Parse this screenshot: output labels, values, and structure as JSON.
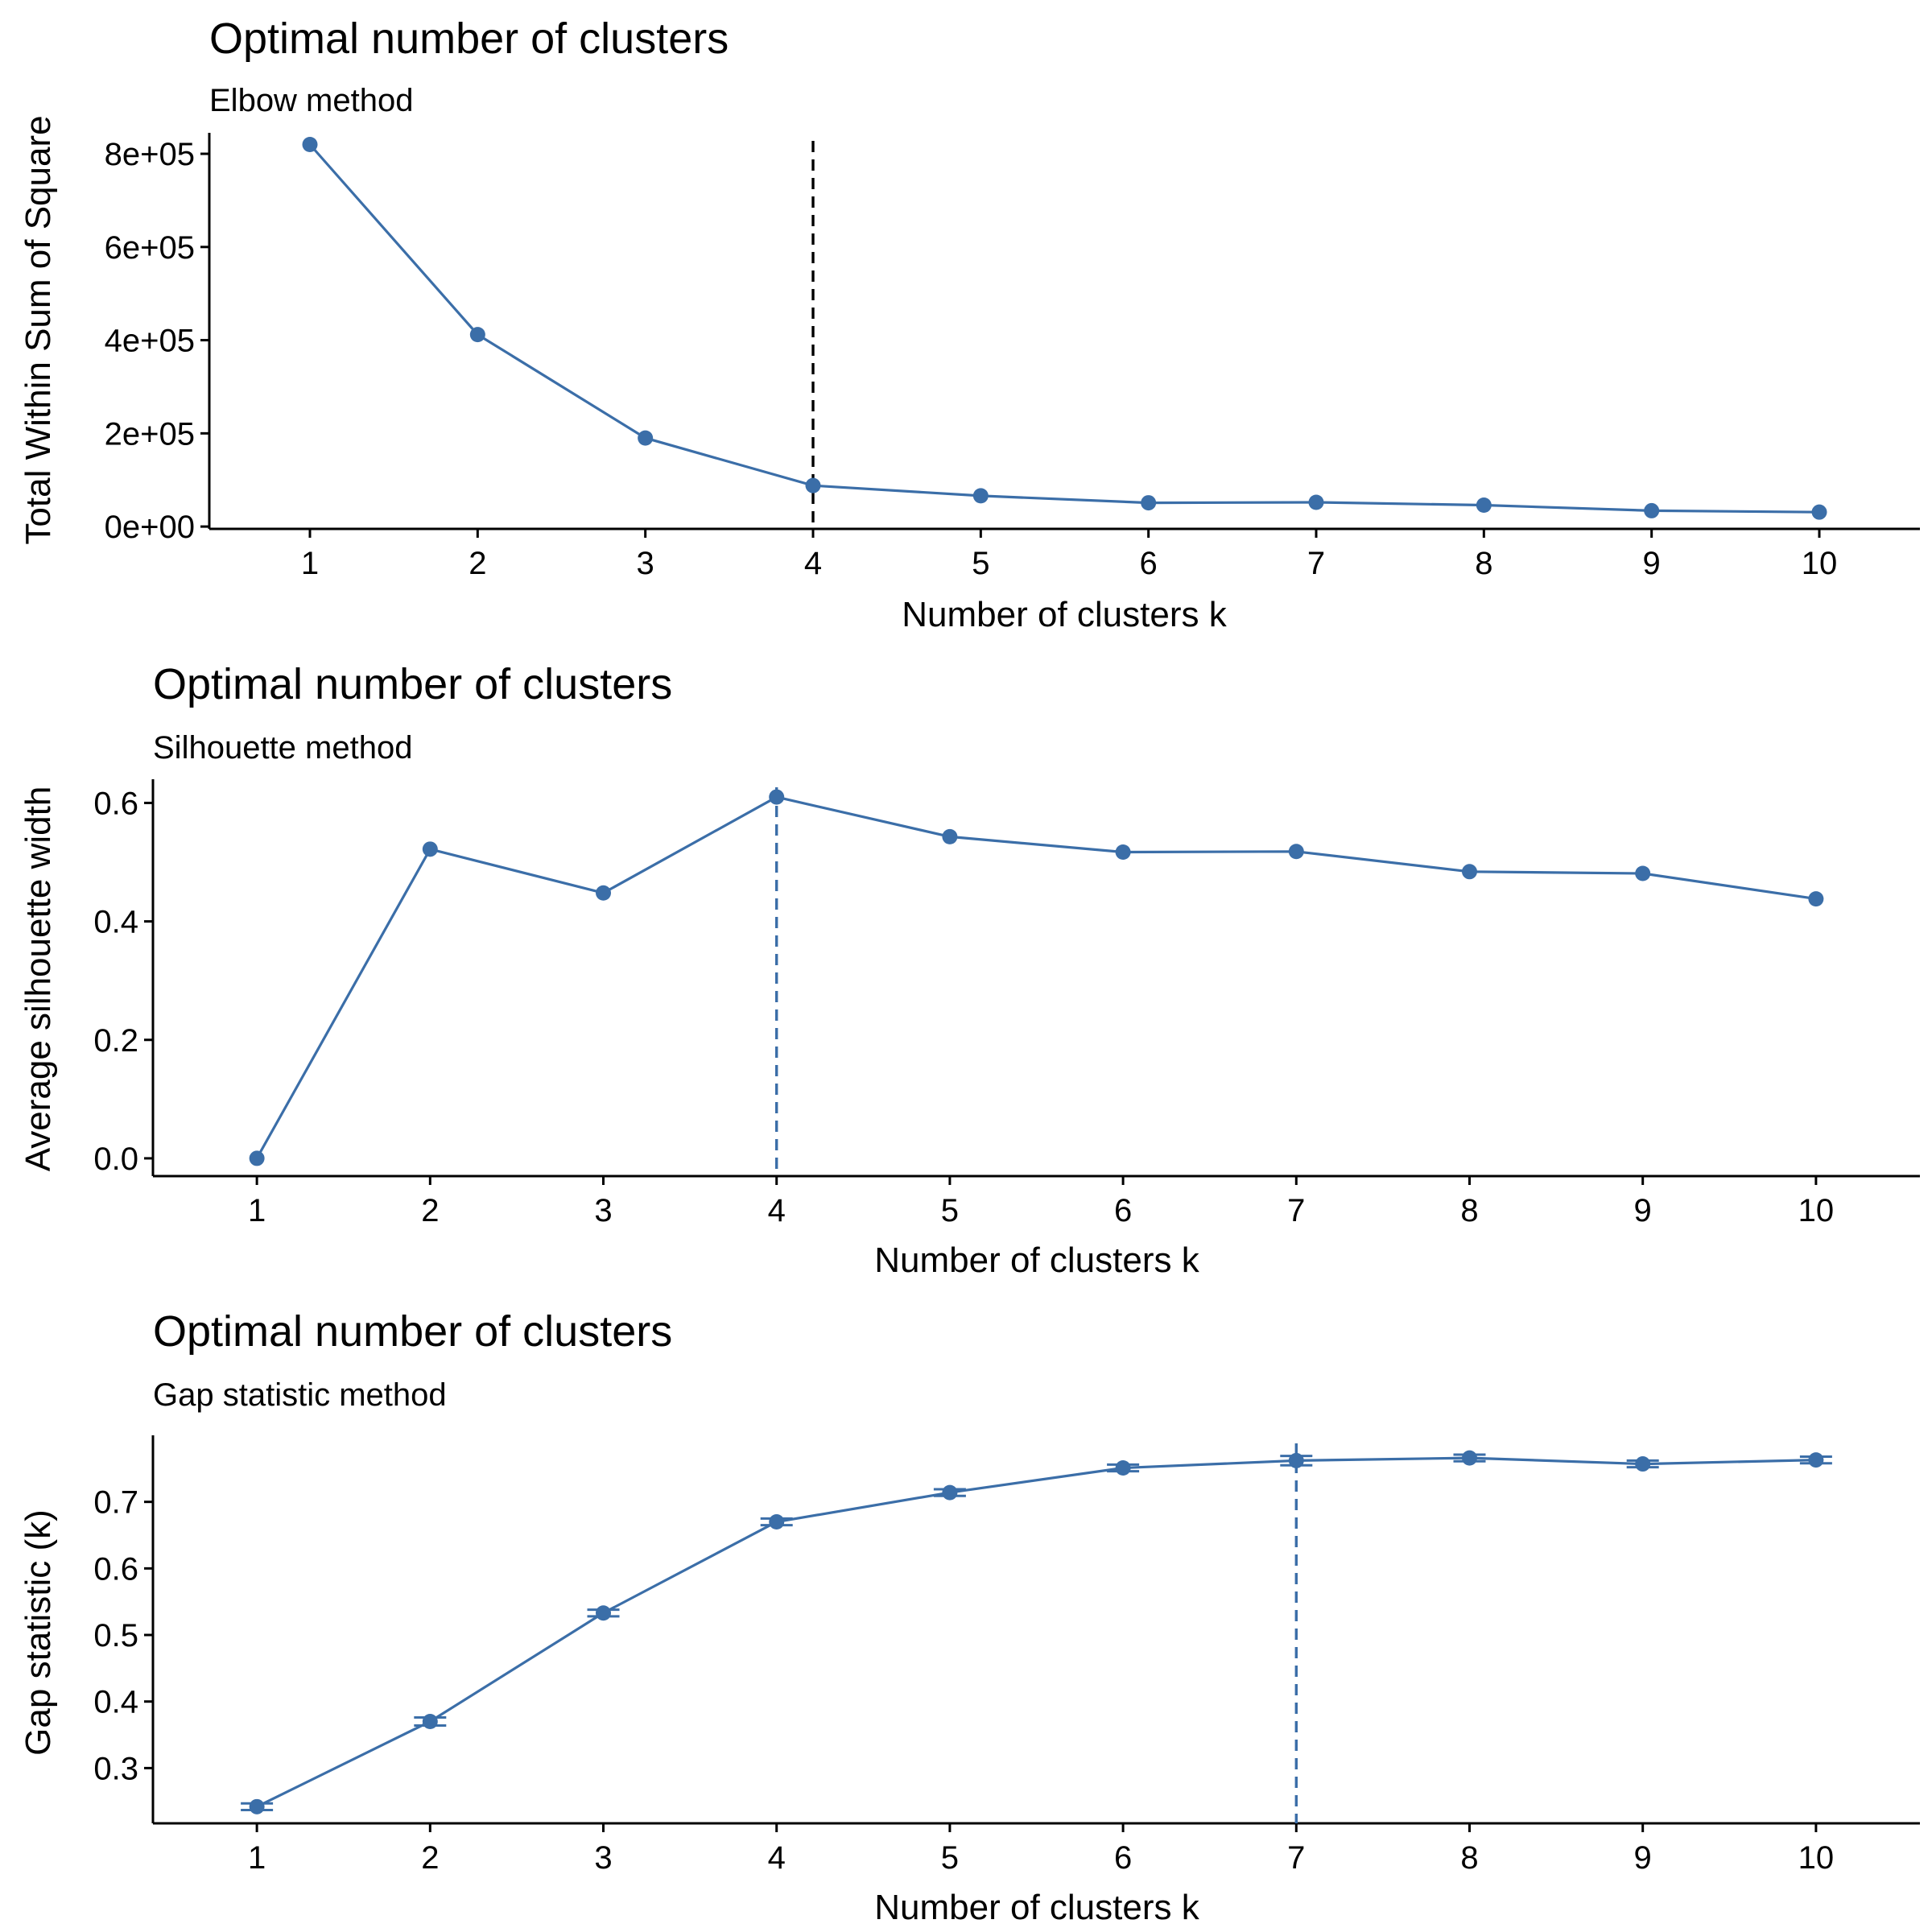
{
  "colors": {
    "series": "#3b6ea8",
    "elbow_vline": "#000000",
    "axis": "#000000"
  },
  "chart_data": [
    {
      "type": "line",
      "title": "Optimal number of clusters",
      "subtitle": "Elbow method",
      "xlabel": "Number of clusters k",
      "ylabel": "Total Within Sum of Square",
      "x": [
        1,
        2,
        3,
        4,
        5,
        6,
        7,
        8,
        9,
        10
      ],
      "xlim": [
        0.4,
        10.6
      ],
      "ylim": [
        -5000,
        845000
      ],
      "y_ticks": [
        0,
        200000,
        400000,
        600000,
        800000
      ],
      "y_tick_labels": [
        "0e+00",
        "2e+05",
        "4e+05",
        "6e+05",
        "8e+05"
      ],
      "series": [
        {
          "values": [
            820000,
            412000,
            190000,
            88000,
            66000,
            51000,
            52000,
            46000,
            34000,
            31000
          ]
        }
      ],
      "vline": {
        "x": 4,
        "style": "dashed",
        "color": "#000000"
      },
      "grid": false,
      "legend": "none"
    },
    {
      "type": "line",
      "title": "Optimal number of clusters",
      "subtitle": "Silhouette method",
      "xlabel": "Number of clusters k",
      "ylabel": "Average silhouette width",
      "x": [
        1,
        2,
        3,
        4,
        5,
        6,
        7,
        8,
        9,
        10
      ],
      "xlim": [
        0.4,
        10.6
      ],
      "ylim": [
        -0.03,
        0.64
      ],
      "y_ticks": [
        0.0,
        0.2,
        0.4,
        0.6
      ],
      "y_tick_labels": [
        "0.0",
        "0.2",
        "0.4",
        "0.6"
      ],
      "series": [
        {
          "values": [
            0.0,
            0.522,
            0.448,
            0.61,
            0.543,
            0.517,
            0.518,
            0.484,
            0.481,
            0.438
          ]
        }
      ],
      "vline": {
        "x": 4,
        "style": "dashed",
        "color": "#3b6ea8"
      },
      "grid": false,
      "legend": "none"
    },
    {
      "type": "line",
      "title": "Optimal number of clusters",
      "subtitle": "Gap statistic method",
      "xlabel": "Number of clusters k",
      "ylabel": "Gap statistic (k)",
      "x": [
        1,
        2,
        3,
        4,
        5,
        6,
        7,
        8,
        9,
        10
      ],
      "xlim": [
        0.4,
        10.6
      ],
      "ylim": [
        0.217,
        0.8
      ],
      "y_ticks": [
        0.3,
        0.4,
        0.5,
        0.6,
        0.7
      ],
      "y_tick_labels": [
        "0.3",
        "0.4",
        "0.5",
        "0.6",
        "0.7"
      ],
      "series": [
        {
          "values": [
            0.242,
            0.37,
            0.533,
            0.67,
            0.714,
            0.751,
            0.762,
            0.766,
            0.757,
            0.763
          ],
          "error": [
            0.005,
            0.006,
            0.005,
            0.005,
            0.005,
            0.005,
            0.007,
            0.005,
            0.005,
            0.005
          ]
        }
      ],
      "vline": {
        "x": 7,
        "style": "dashed",
        "color": "#3b6ea8"
      },
      "grid": false,
      "legend": "none"
    }
  ]
}
